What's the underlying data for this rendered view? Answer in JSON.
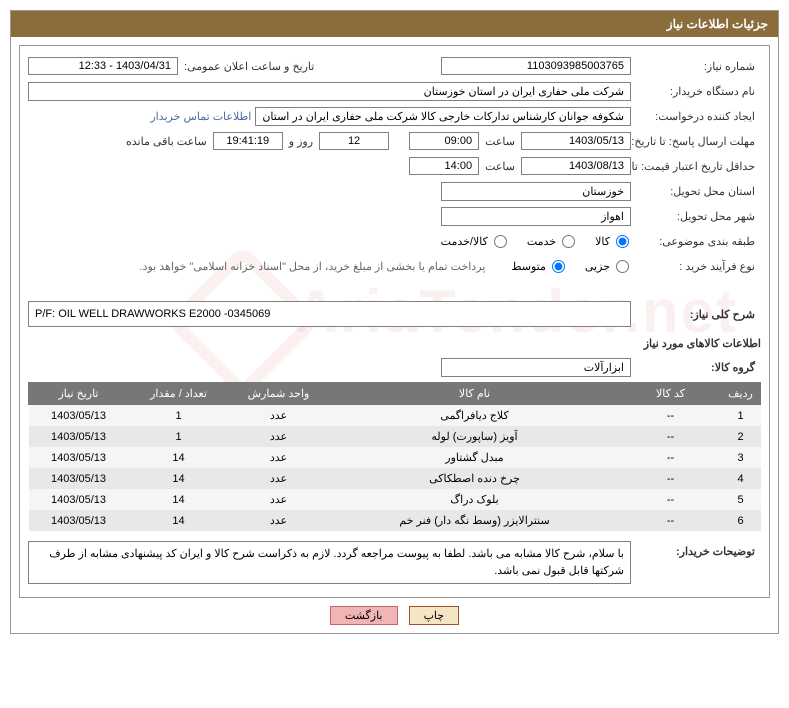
{
  "panel": {
    "title": "جزئیات اطلاعات نیاز"
  },
  "fields": {
    "need_no_label": "شماره نیاز:",
    "need_no": "1103093985003765",
    "announce_label": "تاریخ و ساعت اعلان عمومی:",
    "announce_value": "1403/04/31 - 12:33",
    "buyer_org_label": "نام دستگاه خریدار:",
    "buyer_org": "شرکت ملی حفاری ایران در استان خوزستان",
    "requester_label": "ایجاد کننده درخواست:",
    "requester": "شکوفه جوانان کارشناس تدارکات خارجی کالا شرکت ملی حفاری ایران در استان",
    "contact_link": "اطلاعات تماس خریدار",
    "deadline_label": "مهلت ارسال پاسخ: تا تاریخ:",
    "deadline_date": "1403/05/13",
    "time_label": "ساعت",
    "deadline_time": "09:00",
    "remain_days": "12",
    "remain_days_label": "روز و",
    "remain_time": "19:41:19",
    "remain_suffix": "ساعت باقی مانده",
    "price_valid_label": "حداقل تاریخ اعتبار قیمت: تا تاریخ:",
    "price_valid_date": "1403/08/13",
    "price_valid_time": "14:00",
    "province_label": "استان محل تحویل:",
    "province": "خوزستان",
    "city_label": "شهر محل تحویل:",
    "city": "اهواز",
    "category_label": "طبقه بندی موضوعی:",
    "cat_goods": "کالا",
    "cat_service": "خدمت",
    "cat_both": "کالا/خدمت",
    "process_label": "نوع فرآیند خرید :",
    "proc_partial": "جزیی",
    "proc_medium": "متوسط",
    "process_note": "پرداخت تمام یا بخشی از مبلغ خرید، از محل \"اسناد خزانه اسلامی\" خواهد بود.",
    "summary_label": "شرح کلی نیاز:",
    "summary": "P/F: OIL WELL DRAWWORKS E2000 -0345069",
    "goods_section": "اطلاعات کالاهای مورد نیاز",
    "group_label": "گروه کالا:",
    "group_value": "ابزارآلات",
    "buyer_notes_label": "توضیحات خریدار:",
    "buyer_notes": "با سلام، شرح کالا مشابه می باشد. لطفا به پیوست مراجعه گردد. لازم به ذکراست شرح کالا و ایران کد  پیشنهادی مشابه از طرف شرکتها قابل قبول نمی باشد."
  },
  "table": {
    "h_row": "ردیف",
    "h_code": "کد کالا",
    "h_name": "نام کالا",
    "h_unit": "واحد شمارش",
    "h_qty": "تعداد / مقدار",
    "h_date": "تاریخ نیاز",
    "rows": [
      {
        "n": "1",
        "code": "--",
        "name": "کلاج دیافراگمی",
        "unit": "عدد",
        "qty": "1",
        "date": "1403/05/13"
      },
      {
        "n": "2",
        "code": "--",
        "name": "آویز (ساپورت) لوله",
        "unit": "عدد",
        "qty": "1",
        "date": "1403/05/13"
      },
      {
        "n": "3",
        "code": "--",
        "name": "مبدل گشتاور",
        "unit": "عدد",
        "qty": "14",
        "date": "1403/05/13"
      },
      {
        "n": "4",
        "code": "--",
        "name": "چرخ دنده اصطکاکی",
        "unit": "عدد",
        "qty": "14",
        "date": "1403/05/13"
      },
      {
        "n": "5",
        "code": "--",
        "name": "بلوک دراگ",
        "unit": "عدد",
        "qty": "14",
        "date": "1403/05/13"
      },
      {
        "n": "6",
        "code": "--",
        "name": "سنترالایزر (وسط نگه دار) فنر خم",
        "unit": "عدد",
        "qty": "14",
        "date": "1403/05/13"
      }
    ]
  },
  "buttons": {
    "print": "چاپ",
    "back": "بازگشت"
  }
}
